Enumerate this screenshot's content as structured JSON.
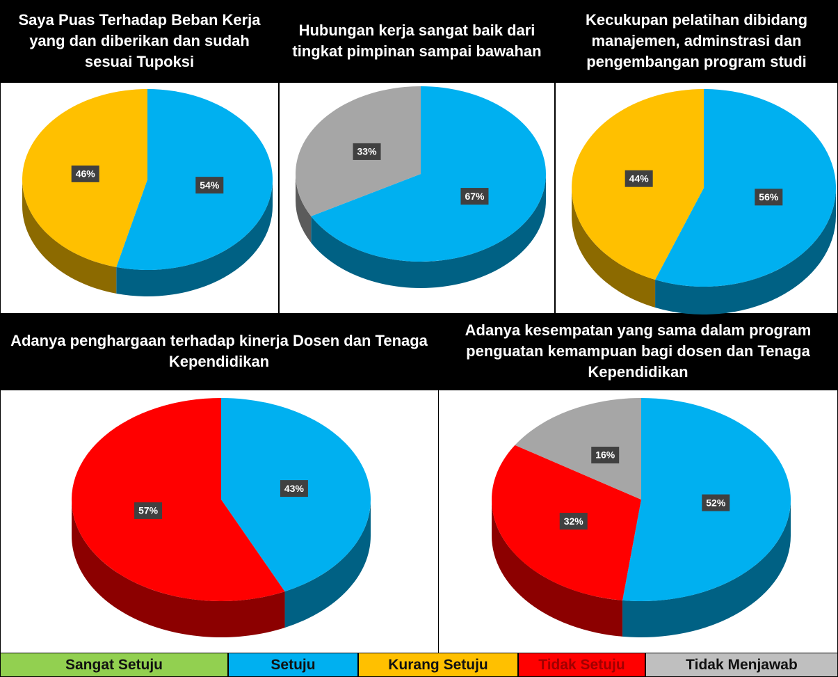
{
  "chart_data": [
    {
      "type": "pie",
      "title": "Saya Puas Terhadap Beban Kerja yang dan diberikan dan  sudah  sesuai Tupoksi",
      "values": [
        54,
        46
      ],
      "value_labels": [
        "54%",
        "46%"
      ],
      "colors": [
        "#00b0f0",
        "#ffc000"
      ]
    },
    {
      "type": "pie",
      "title": "Hubungan kerja sangat baik dari tingkat pimpinan sampai bawahan",
      "values": [
        67,
        33
      ],
      "value_labels": [
        "67%",
        "33%"
      ],
      "colors": [
        "#00b0f0",
        "#a6a6a6"
      ]
    },
    {
      "type": "pie",
      "title": "Kecukupan pelatihan dibidang manajemen, adminstrasi dan pengembangan program studi",
      "values": [
        56,
        44
      ],
      "value_labels": [
        "56%",
        "44%"
      ],
      "colors": [
        "#00b0f0",
        "#ffc000"
      ]
    },
    {
      "type": "pie",
      "title": "Adanya penghargaan terhadap kinerja Dosen dan Tenaga Kependidikan",
      "values": [
        43,
        57
      ],
      "value_labels": [
        "43%",
        "57%"
      ],
      "colors": [
        "#00b0f0",
        "#ff0000"
      ]
    },
    {
      "type": "pie",
      "title": "Adanya kesempatan yang sama dalam program penguatan kemampuan bagi dosen dan Tenaga Kependidikan",
      "values": [
        52,
        32,
        16
      ],
      "value_labels": [
        "52%",
        "32%",
        "16%"
      ],
      "colors": [
        "#00b0f0",
        "#ff0000",
        "#a6a6a6"
      ]
    }
  ],
  "legend": [
    {
      "name": "Sangat Setuju",
      "color": "#92d050"
    },
    {
      "name": "Setuju",
      "color": "#00b0f0"
    },
    {
      "name": "Kurang Setuju",
      "color": "#ffc000"
    },
    {
      "name": "Tidak Setuju",
      "color": "#ff0000"
    },
    {
      "name": "Tidak Menjawab",
      "color": "#bfbfbf"
    }
  ]
}
